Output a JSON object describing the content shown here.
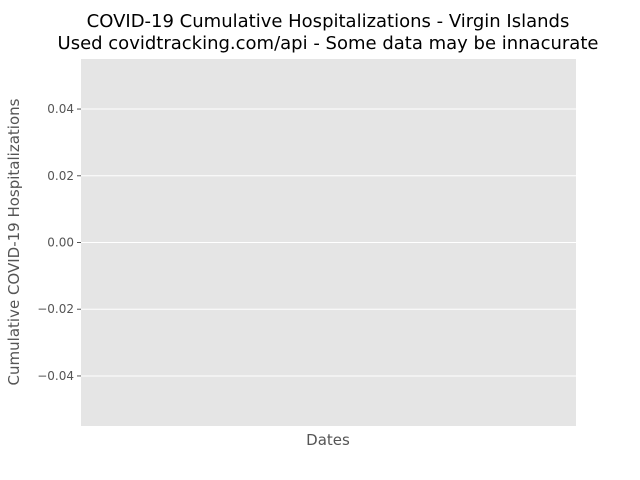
{
  "chart_data": {
    "type": "line",
    "title": "COVID-19 Cumulative Hospitalizations - Virgin Islands",
    "subtitle": "Used covidtracking.com/api - Some data may be innacurate",
    "xlabel": "Dates",
    "ylabel": "Cumulative COVID-19 Hospitalizations",
    "ylim": [
      -0.055,
      0.055
    ],
    "yticks": [
      0.04,
      0.02,
      0.0,
      -0.02,
      -0.04
    ],
    "ytick_labels": [
      "0.04",
      "0.02",
      "0.00",
      "−0.02",
      "−0.04"
    ],
    "x": [],
    "series": [],
    "grid": true,
    "style": "ggplot",
    "colors": {
      "plot_background": "#e5e5e5",
      "grid": "#ffffff",
      "tick_text": "#555555",
      "label_text": "#555555",
      "title_text": "#000000"
    }
  }
}
